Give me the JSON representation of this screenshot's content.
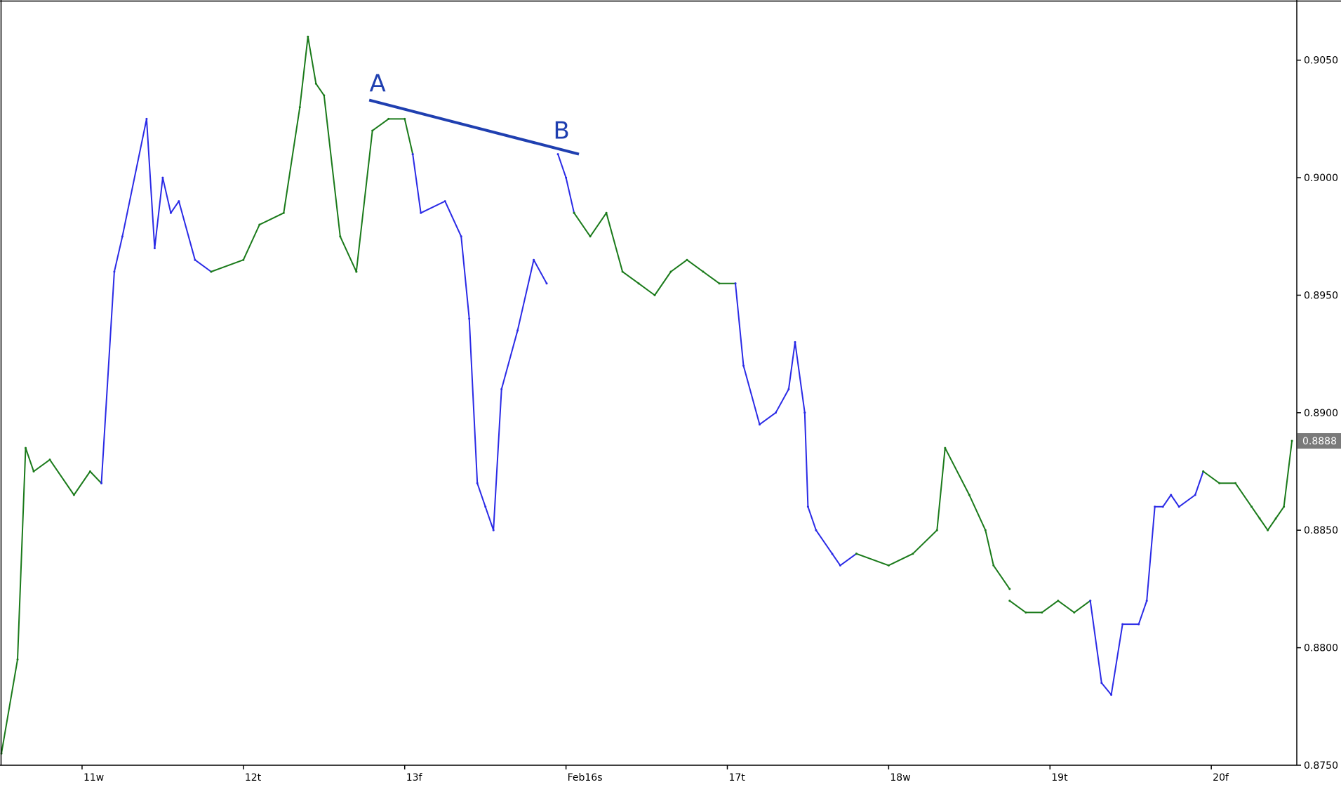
{
  "chart_data": {
    "type": "line",
    "style": "bar-ohlc",
    "xlim": [
      0,
      8.03
    ],
    "ylim": [
      0.875,
      0.9075
    ],
    "x_ticks": [
      {
        "label": "11w",
        "x": 0.5
      },
      {
        "label": "12t",
        "x": 1.5
      },
      {
        "label": "13f",
        "x": 2.5
      },
      {
        "label": "Feb16s",
        "x": 3.5
      },
      {
        "label": "17t",
        "x": 4.5
      },
      {
        "label": "18w",
        "x": 5.5
      },
      {
        "label": "19t",
        "x": 6.5
      },
      {
        "label": "20f",
        "x": 7.5
      }
    ],
    "y_ticks": [
      0.875,
      0.88,
      0.885,
      0.89,
      0.895,
      0.9,
      0.905
    ],
    "y_tick_labels": [
      "0.8750",
      "0.8800",
      "0.8850",
      "0.8900",
      "0.8950",
      "0.9000",
      "0.9050"
    ],
    "current_price": 0.8888,
    "current_price_label": "0.8888",
    "grid": false,
    "colors": {
      "up": "#1a7a1a",
      "down": "#2a2ae6",
      "annotation": "#1f3fb0",
      "price_tag": "#7a7a7a"
    },
    "series": [
      {
        "color_key": "up",
        "x": [
          0.0,
          0.1,
          0.15,
          0.2,
          0.3,
          0.45,
          0.55,
          0.62
        ],
        "y": [
          0.8755,
          0.8795,
          0.8885,
          0.8875,
          0.888,
          0.8865,
          0.8875,
          0.887
        ]
      },
      {
        "color_key": "down",
        "x": [
          0.62,
          0.7,
          0.75,
          0.9,
          0.95,
          1.0,
          1.05,
          1.1,
          1.2,
          1.3
        ],
        "y": [
          0.887,
          0.896,
          0.8975,
          0.9025,
          0.897,
          0.9,
          0.8985,
          0.899,
          0.8965,
          0.896
        ]
      },
      {
        "color_key": "up",
        "x": [
          1.3,
          1.5,
          1.6,
          1.75,
          1.85,
          1.9,
          1.95,
          2.0,
          2.1,
          2.2
        ],
        "y": [
          0.896,
          0.8965,
          0.898,
          0.8985,
          0.903,
          0.906,
          0.904,
          0.9035,
          0.8975,
          0.896
        ]
      },
      {
        "color_key": "up",
        "x": [
          2.2,
          2.3,
          2.4,
          2.5,
          2.55
        ],
        "y": [
          0.896,
          0.902,
          0.9025,
          0.9025,
          0.901
        ]
      },
      {
        "color_key": "down",
        "x": [
          2.55,
          2.6,
          2.75,
          2.85,
          2.9,
          2.95,
          3.0,
          3.05,
          3.1,
          3.2,
          3.3,
          3.38
        ],
        "y": [
          0.901,
          0.8985,
          0.899,
          0.8975,
          0.894,
          0.887,
          0.886,
          0.885,
          0.891,
          0.8935,
          0.8965,
          0.8955
        ]
      },
      {
        "color_key": "down",
        "x": [
          3.45,
          3.5,
          3.55
        ],
        "y": [
          0.901,
          0.9,
          0.8985
        ]
      },
      {
        "color_key": "up",
        "x": [
          3.55,
          3.65,
          3.75,
          3.85,
          3.95,
          4.05,
          4.15,
          4.25,
          4.35,
          4.45,
          4.55
        ],
        "y": [
          0.8985,
          0.8975,
          0.8985,
          0.896,
          0.8955,
          0.895,
          0.896,
          0.8965,
          0.896,
          0.8955,
          0.8955
        ]
      },
      {
        "color_key": "down",
        "x": [
          4.55,
          4.6,
          4.7,
          4.8,
          4.88,
          4.92,
          4.98
        ],
        "y": [
          0.8955,
          0.892,
          0.8895,
          0.89,
          0.891,
          0.893,
          0.89
        ]
      },
      {
        "color_key": "down",
        "x": [
          4.98,
          5.0,
          5.05,
          5.15,
          5.2,
          5.3
        ],
        "y": [
          0.89,
          0.886,
          0.885,
          0.884,
          0.8835,
          0.884
        ]
      },
      {
        "color_key": "up",
        "x": [
          5.3,
          5.5,
          5.65,
          5.8,
          5.85,
          6.0,
          6.1,
          6.15,
          6.25
        ],
        "y": [
          0.884,
          0.8835,
          0.884,
          0.885,
          0.8885,
          0.8865,
          0.885,
          0.8835,
          0.8825
        ]
      },
      {
        "color_key": "up",
        "x": [
          6.25,
          6.35,
          6.45,
          6.55,
          6.65,
          6.75
        ],
        "y": [
          0.882,
          0.8815,
          0.8815,
          0.882,
          0.8815,
          0.882
        ]
      },
      {
        "color_key": "down",
        "x": [
          6.75,
          6.82,
          6.88,
          6.95,
          7.05,
          7.1,
          7.15,
          7.2,
          7.25,
          7.3,
          7.4,
          7.45
        ],
        "y": [
          0.882,
          0.8785,
          0.878,
          0.881,
          0.881,
          0.882,
          0.886,
          0.886,
          0.8865,
          0.886,
          0.8865,
          0.8875
        ]
      },
      {
        "color_key": "up",
        "x": [
          7.45,
          7.55,
          7.65,
          7.75,
          7.8,
          7.85,
          7.9,
          7.95,
          8.0
        ],
        "y": [
          0.8875,
          0.887,
          0.887,
          0.886,
          0.8855,
          0.885,
          0.8855,
          0.886,
          0.8888
        ]
      }
    ],
    "annotations": [
      {
        "label": "A",
        "x": 2.28,
        "y": 0.9033
      },
      {
        "label": "B",
        "x": 3.42,
        "y": 0.9013
      }
    ],
    "trendline": {
      "x1": 2.28,
      "y1": 0.9033,
      "x2": 3.58,
      "y2": 0.901
    }
  }
}
